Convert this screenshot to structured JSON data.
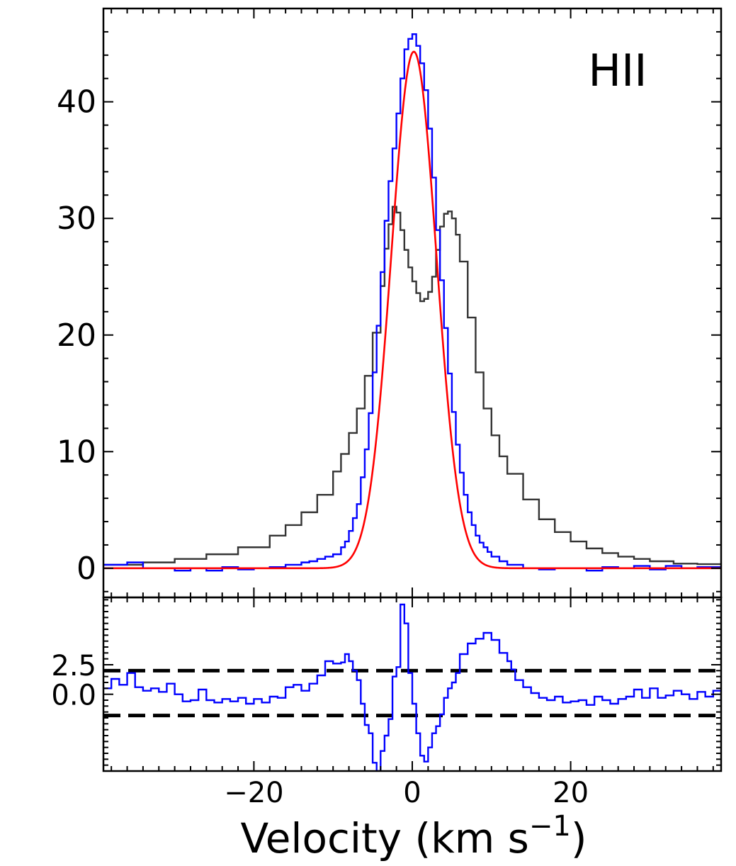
{
  "chart_data": [
    {
      "type": "line",
      "panel": "main",
      "annotation": "HII",
      "xlim": [
        -39,
        39
      ],
      "ylim": [
        -2.5,
        48
      ],
      "y_ticks": [
        0,
        10,
        20,
        30,
        40
      ],
      "y_tick_labels": [
        "0",
        "10",
        "20",
        "30",
        "40"
      ],
      "grid": false,
      "series": [
        {
          "style": "step",
          "color": "#333333",
          "x": [
            -39,
            -34,
            -30,
            -26,
            -22,
            -18,
            -16,
            -14,
            -12,
            -10,
            -9,
            -8,
            -7,
            -6,
            -5,
            -4,
            -3.5,
            -3,
            -2.5,
            -2,
            -1.5,
            -1,
            -0.5,
            0,
            0.5,
            1,
            1.5,
            2,
            2.5,
            3,
            3.5,
            4,
            4.5,
            5,
            5.5,
            6,
            7,
            8,
            9,
            10,
            11,
            12,
            14,
            16,
            18,
            20,
            22,
            24,
            26,
            28,
            30,
            33,
            36,
            39
          ],
          "y": [
            0.3,
            0.5,
            0.8,
            1.2,
            1.8,
            2.8,
            3.7,
            4.8,
            6.3,
            8.3,
            9.8,
            11.6,
            13.7,
            16.5,
            20.2,
            24.2,
            27.4,
            29.5,
            31.0,
            30.5,
            29.0,
            27.3,
            25.8,
            24.6,
            23.6,
            22.9,
            23.1,
            23.7,
            25.0,
            27.3,
            29.3,
            30.4,
            30.6,
            30.0,
            28.6,
            26.3,
            21.5,
            16.8,
            13.7,
            11.4,
            9.6,
            8.1,
            5.9,
            4.2,
            3.1,
            2.3,
            1.7,
            1.3,
            1.0,
            0.8,
            0.6,
            0.4,
            0.35,
            0.3
          ]
        },
        {
          "style": "step",
          "color": "#0000ff",
          "x": [
            -39,
            -36,
            -34,
            -32,
            -30,
            -28,
            -26,
            -24,
            -22,
            -20,
            -18,
            -16,
            -14,
            -13,
            -12,
            -11,
            -10,
            -9,
            -8.5,
            -8,
            -7.5,
            -7,
            -6.5,
            -6,
            -5.5,
            -5,
            -4.5,
            -4,
            -3.5,
            -3,
            -2.5,
            -2,
            -1.5,
            -1,
            -0.5,
            0,
            0.5,
            1,
            1.5,
            2,
            2.5,
            3,
            3.5,
            4,
            4.5,
            5,
            5.5,
            6,
            6.5,
            7,
            7.5,
            8,
            8.5,
            9,
            9.5,
            10,
            11,
            12,
            14,
            16,
            18,
            20,
            22,
            24,
            26,
            28,
            30,
            32,
            34,
            36,
            39
          ],
          "y": [
            0.3,
            0.5,
            0.0,
            0.0,
            -0.2,
            0.0,
            -0.2,
            0.1,
            -0.1,
            0.0,
            0.1,
            0.3,
            0.5,
            0.6,
            0.8,
            1.0,
            1.2,
            1.8,
            2.3,
            3.2,
            4.3,
            5.5,
            7.8,
            10.2,
            13.3,
            16.8,
            20.8,
            25.4,
            29.8,
            33.2,
            36.0,
            39.0,
            42.0,
            44.5,
            45.4,
            45.8,
            44.8,
            43.3,
            41.0,
            37.7,
            33.5,
            29.0,
            24.7,
            20.6,
            16.7,
            13.4,
            10.6,
            8.2,
            6.3,
            4.8,
            3.7,
            2.8,
            2.2,
            1.8,
            1.4,
            1.0,
            0.6,
            0.3,
            0.0,
            -0.1,
            0.0,
            0.0,
            -0.2,
            0.1,
            0.0,
            0.2,
            -0.1,
            0.2,
            0.0,
            0.1,
            0.0
          ]
        },
        {
          "style": "smooth",
          "color": "#ff0000",
          "model": "gaussian",
          "amplitude": 44.3,
          "center": 0.2,
          "sigma": 2.85
        }
      ]
    },
    {
      "type": "line",
      "panel": "residual",
      "xlim": [
        -39,
        39
      ],
      "ylim": [
        -6.5,
        8.2
      ],
      "x_ticks": [
        -20,
        0,
        20
      ],
      "x_tick_labels": [
        "−20",
        "0",
        "20"
      ],
      "y_ticks": [
        0.0,
        2.5
      ],
      "y_tick_labels": [
        "0.0",
        "2.5"
      ],
      "xlabel": "Velocity (km s",
      "xlabel_exponent": "−1",
      "xlabel_suffix": ")",
      "reference_lines": [
        2.0,
        -1.8
      ],
      "grid": false,
      "series": [
        {
          "style": "step",
          "color": "#0000ff",
          "x": [
            -39,
            -38,
            -37,
            -36,
            -35,
            -34,
            -33,
            -32,
            -31,
            -30,
            -29,
            -28,
            -27,
            -26,
            -25,
            -24,
            -23,
            -22,
            -21,
            -20,
            -19,
            -18,
            -17,
            -16,
            -15,
            -14,
            -13,
            -12,
            -11,
            -10,
            -9,
            -8.5,
            -8,
            -7.5,
            -7,
            -6.5,
            -6,
            -5.5,
            -5,
            -4.5,
            -4,
            -3.5,
            -3,
            -2.5,
            -2,
            -1.5,
            -1,
            -0.5,
            0,
            0.5,
            1,
            1.5,
            2,
            2.5,
            3,
            3.5,
            4,
            4.5,
            5,
            5.5,
            6,
            7,
            8,
            9,
            10,
            11,
            12,
            12.5,
            13,
            14,
            15,
            16,
            17,
            18,
            19,
            20,
            21,
            22,
            23,
            24,
            25,
            26,
            27,
            28,
            29,
            30,
            31,
            32,
            33,
            34,
            35,
            36,
            37,
            38,
            39
          ],
          "y": [
            0.5,
            1.3,
            0.8,
            1.8,
            0.6,
            0.3,
            0.5,
            0.2,
            0.9,
            0.0,
            -0.6,
            -0.5,
            0.4,
            -0.5,
            -0.7,
            -0.4,
            -0.6,
            -0.3,
            -0.8,
            -0.4,
            -0.7,
            -0.2,
            -0.3,
            0.6,
            0.8,
            0.3,
            0.9,
            1.6,
            2.8,
            2.6,
            2.7,
            3.4,
            2.8,
            2.0,
            1.2,
            -0.8,
            -2.6,
            -3.3,
            -5.8,
            -6.5,
            -4.8,
            -3.5,
            -2.1,
            1.5,
            2.3,
            7.6,
            6.0,
            1.8,
            -0.8,
            -3.3,
            -5.2,
            -5.7,
            -4.5,
            -3.3,
            -2.7,
            -1.7,
            -0.3,
            0.5,
            1.0,
            1.8,
            3.4,
            4.3,
            4.7,
            5.2,
            4.6,
            3.5,
            2.8,
            2.1,
            1.2,
            0.6,
            0.1,
            -0.3,
            -0.5,
            -0.2,
            -0.7,
            -0.6,
            -0.5,
            -0.9,
            -0.2,
            -0.5,
            -0.8,
            -0.4,
            -0.2,
            0.4,
            -0.3,
            0.5,
            -0.3,
            -0.1,
            0.3,
            0.0,
            -0.4,
            0.2,
            -0.2,
            0.3,
            -0.7
          ]
        }
      ]
    }
  ]
}
